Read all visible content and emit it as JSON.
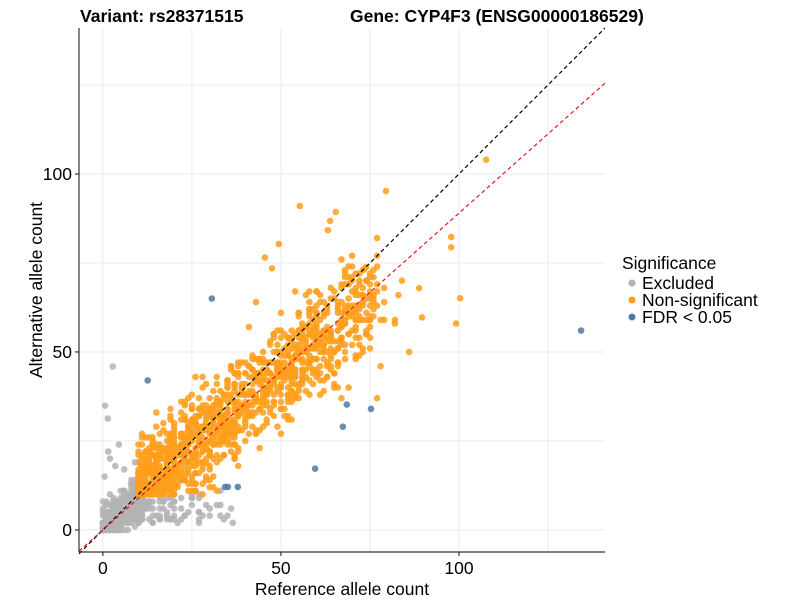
{
  "chart_data": {
    "type": "scatter",
    "title_left": "Variant: rs28371515",
    "title_right": "Gene: CYP4F3 (ENSG00000186529)",
    "xlabel": "Reference allele count",
    "ylabel": "Alternative allele count",
    "xlim": [
      -6.7,
      141
    ],
    "ylim": [
      -6.2,
      141
    ],
    "x_ticks": [
      0,
      50,
      100
    ],
    "y_ticks": [
      0,
      50,
      100
    ],
    "x_tick_labels": [
      "0",
      "50",
      "100"
    ],
    "y_tick_labels": [
      "0",
      "50",
      "100"
    ],
    "grid": true,
    "grid_minor": [
      25,
      75,
      125
    ],
    "legend": {
      "title": "Significance",
      "placement": "right",
      "entries": [
        {
          "label": "Excluded",
          "color": "#b3b3b3"
        },
        {
          "label": "Non-significant",
          "color": "#ff9e1b"
        },
        {
          "label": "FDR < 0.05",
          "color": "#4e79a7"
        }
      ]
    },
    "reference_lines": [
      {
        "name": "identity",
        "slope": 1.0,
        "intercept": 0,
        "color": "#000000",
        "style": "dashed"
      },
      {
        "name": "fitted-ratio",
        "slope": 0.89,
        "intercept": 0,
        "color": "#e41a1c",
        "style": "dashed"
      }
    ],
    "dense_clusters": [
      {
        "group": "Excluded",
        "description": "dense cloud near origin",
        "x_range": [
          0,
          12
        ],
        "y_range": [
          0,
          14
        ],
        "approx_count": 350
      },
      {
        "group": "Excluded",
        "description": "below-threshold band",
        "x_range": [
          10,
          40
        ],
        "y_range": [
          2,
          11
        ],
        "approx_count": 90
      },
      {
        "group": "Non-significant",
        "description": "main diagonal cloud",
        "x_range": [
          10,
          75
        ],
        "y_range": [
          10,
          60
        ],
        "approx_count": 1300
      }
    ],
    "series": [
      {
        "name": "Excluded",
        "color": "#b3b3b3",
        "points": [
          [
            2.8,
            45.9
          ],
          [
            0.6,
            34.9
          ],
          [
            1.4,
            31.3
          ],
          [
            36.5,
            2.0
          ],
          [
            4.5,
            24
          ],
          [
            1.5,
            22
          ],
          [
            2.0,
            20
          ],
          [
            3.5,
            18
          ],
          [
            0.5,
            15
          ],
          [
            6,
            17
          ],
          [
            9,
            19
          ],
          [
            8,
            13
          ],
          [
            12,
            7
          ],
          [
            15,
            4
          ],
          [
            22,
            3
          ],
          [
            28,
            4
          ],
          [
            30,
            6
          ],
          [
            20,
            8
          ],
          [
            25,
            9
          ]
        ]
      },
      {
        "name": "Non-significant",
        "color": "#ff9e1b",
        "points": [
          [
            107.6,
            104
          ],
          [
            79.5,
            95.2
          ],
          [
            55.3,
            91
          ],
          [
            63.8,
            86.8
          ],
          [
            65.4,
            89.3
          ],
          [
            63.2,
            84.2
          ],
          [
            49.4,
            80.3
          ],
          [
            97.8,
            82.3
          ],
          [
            97.8,
            79.4
          ],
          [
            100.3,
            65.1
          ],
          [
            99.2,
            58
          ],
          [
            88.8,
            67.9
          ],
          [
            89.6,
            59.7
          ],
          [
            73.9,
            73.8
          ],
          [
            73.3,
            73.2
          ],
          [
            45.5,
            76.5
          ],
          [
            47.5,
            73.5
          ],
          [
            43,
            64
          ],
          [
            54,
            67
          ],
          [
            58,
            67
          ],
          [
            67,
            57
          ],
          [
            74,
            55
          ],
          [
            82,
            58
          ],
          [
            86,
            50
          ],
          [
            78,
            46
          ],
          [
            70,
            52
          ],
          [
            62,
            56
          ],
          [
            66,
            47
          ],
          [
            60,
            43
          ],
          [
            77,
            37
          ],
          [
            68,
            48
          ],
          [
            72,
            54
          ]
        ]
      },
      {
        "name": "FDR < 0.05",
        "color": "#4e79a7",
        "points": [
          [
            12.6,
            42
          ],
          [
            30.6,
            65
          ],
          [
            68.5,
            35.2
          ],
          [
            75.3,
            34
          ],
          [
            67.4,
            29
          ],
          [
            59.6,
            17.2
          ],
          [
            34.3,
            12.1
          ],
          [
            35.1,
            12.1
          ],
          [
            37.9,
            12.1
          ],
          [
            134.3,
            56
          ]
        ]
      }
    ]
  }
}
